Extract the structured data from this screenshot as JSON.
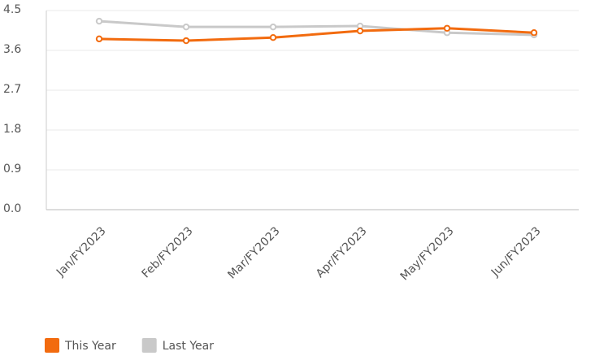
{
  "chart_data": {
    "type": "line",
    "categories": [
      "Jan/FY2023",
      "Feb/FY2023",
      "Mar/FY2023",
      "Apr/FY2023",
      "May/FY2023",
      "Jun/FY2023"
    ],
    "series": [
      {
        "name": "This Year",
        "color": "#f26b0f",
        "values": [
          3.86,
          3.82,
          3.89,
          4.04,
          4.1,
          4.0
        ]
      },
      {
        "name": "Last Year",
        "color": "#c9c9c9",
        "values": [
          4.26,
          4.13,
          4.13,
          4.15,
          4.0,
          3.95
        ]
      }
    ],
    "ylim": [
      0,
      4.5
    ],
    "yticks": [
      {
        "value": 0,
        "label": "0.0"
      },
      0.9,
      1.8,
      2.7,
      3.6,
      4.5
    ],
    "grid": true,
    "legend": "bottom-left"
  }
}
